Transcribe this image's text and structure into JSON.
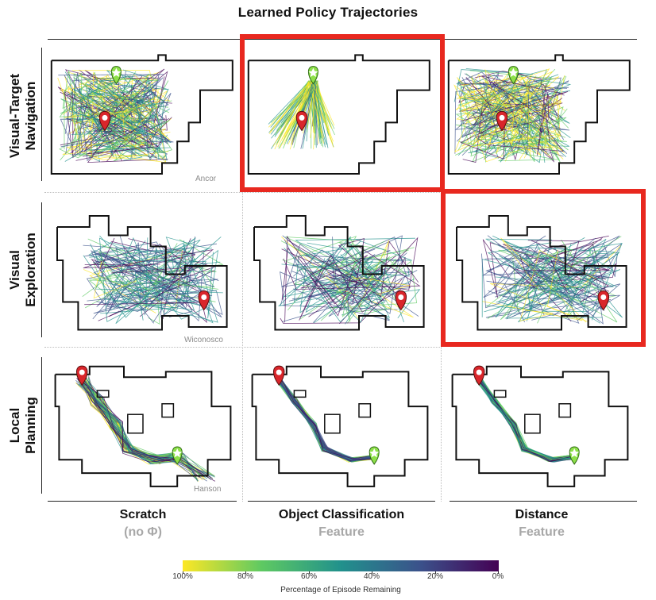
{
  "figure": {
    "title": "Learned Policy Trajectories",
    "rows": [
      {
        "label": "Visual-Target\nNavigation",
        "environment": "Ancor"
      },
      {
        "label": "Visual\nExploration",
        "environment": "Wiconosco"
      },
      {
        "label": "Local\nPlanning",
        "environment": "Hanson"
      }
    ],
    "columns": [
      {
        "line1": "Scratch",
        "line2": "(no Φ)"
      },
      {
        "line1": "Object Classification",
        "line2": "Feature"
      },
      {
        "line1": "Distance",
        "line2": "Feature"
      }
    ],
    "highlighted_cells": [
      {
        "row": 1,
        "column": 2
      },
      {
        "row": 2,
        "column": 3
      }
    ],
    "colorbar": {
      "ticks": [
        "100%",
        "80%",
        "60%",
        "40%",
        "20%",
        "0%"
      ],
      "label": "Percentage of Episode Remaining",
      "colors": [
        "#fde725",
        "#5ec962",
        "#21918c",
        "#3b528b",
        "#440154"
      ]
    },
    "colors": {
      "highlight": "#e8281f",
      "start_marker": "#d9262b",
      "goal_marker": "#8ee04a",
      "colorbar_muted_label": "#a8a8a8"
    },
    "icons": [
      "start-pin-icon",
      "goal-star-pin-icon"
    ]
  }
}
